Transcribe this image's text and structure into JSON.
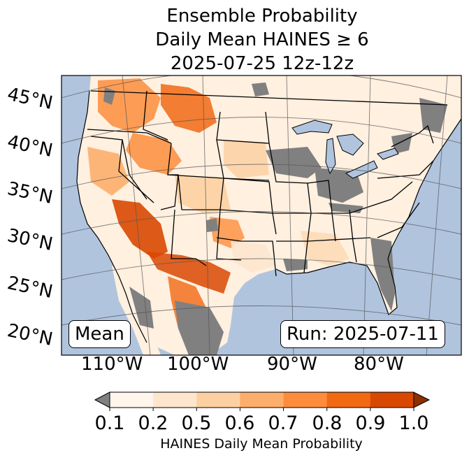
{
  "title": {
    "line1": "Ensemble Probability",
    "line2": "Daily Mean HAINES ≥ 6",
    "line3": "2025-07-25 12z-12z"
  },
  "map": {
    "lat_labels": [
      "45°N",
      "40°N",
      "35°N",
      "30°N",
      "25°N",
      "20°N"
    ],
    "lon_labels": [
      "110°W",
      "100°W",
      "90°W",
      "80°W"
    ],
    "stat_label": "Mean",
    "run_label": "Run: 2025-07-11",
    "colors": {
      "ocean": "#b0c4de",
      "land": "#ffffff",
      "missing": "#808080"
    }
  },
  "colorbar": {
    "title": "HAINES Daily Mean Probability",
    "ticks": [
      "0.1",
      "0.2",
      "0.5",
      "0.6",
      "0.7",
      "0.8",
      "0.9",
      "1.0"
    ],
    "under_color": "#808080",
    "over_color": "#8b3000",
    "colors": [
      "#fff5eb",
      "#fee6ce",
      "#fdd0a2",
      "#fdae6b",
      "#fd8d3c",
      "#f16913",
      "#d94801"
    ]
  }
}
